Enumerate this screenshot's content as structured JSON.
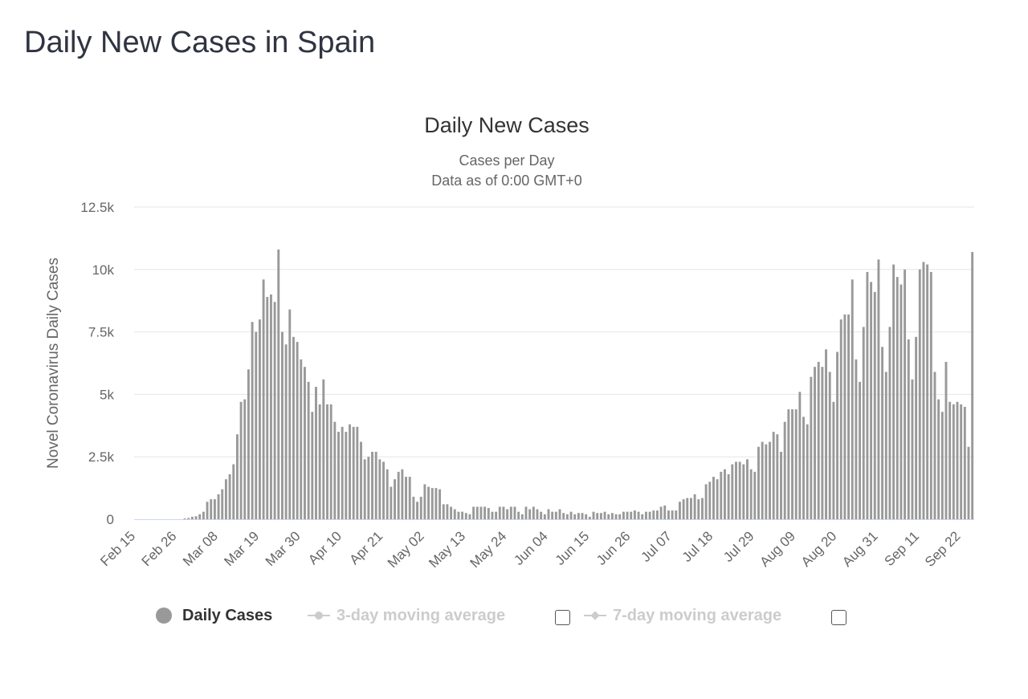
{
  "page": {
    "heading": "Daily New Cases in Spain"
  },
  "chart_data": {
    "type": "bar",
    "title": "Daily New Cases",
    "subtitle_lines": [
      "Cases per Day",
      "Data as of 0:00 GMT+0"
    ],
    "ylabel": "Novel Coronavirus Daily Cases",
    "xlabel": "",
    "ylim": [
      0,
      12500
    ],
    "yticks": [
      {
        "value": 0,
        "label": "0"
      },
      {
        "value": 2500,
        "label": "2.5k"
      },
      {
        "value": 5000,
        "label": "5k"
      },
      {
        "value": 7500,
        "label": "7.5k"
      },
      {
        "value": 10000,
        "label": "10k"
      },
      {
        "value": 12500,
        "label": "12.5k"
      }
    ],
    "xtick_labels": [
      "Feb 15",
      "Feb 26",
      "Mar 08",
      "Mar 19",
      "Mar 30",
      "Apr 10",
      "Apr 21",
      "May 02",
      "May 13",
      "May 24",
      "Jun 04",
      "Jun 15",
      "Jun 26",
      "Jul 07",
      "Jul 18",
      "Jul 29",
      "Aug 09",
      "Aug 20",
      "Aug 31",
      "Sep 11",
      "Sep 22"
    ],
    "grid": true,
    "bar_color": "#999999",
    "series": [
      {
        "name": "Daily Cases",
        "values": [
          0,
          0,
          0,
          0,
          0,
          0,
          0,
          0,
          0,
          0,
          0,
          0,
          0,
          30,
          50,
          100,
          120,
          200,
          300,
          700,
          800,
          800,
          1000,
          1200,
          1600,
          1800,
          2200,
          3400,
          4700,
          4800,
          6000,
          7900,
          7500,
          8000,
          9600,
          8900,
          9000,
          8700,
          10800,
          7500,
          7000,
          8400,
          7300,
          7100,
          6400,
          6100,
          5500,
          4300,
          5300,
          4600,
          5600,
          4600,
          4600,
          3900,
          3500,
          3700,
          3500,
          3800,
          3700,
          3700,
          3100,
          2400,
          2500,
          2700,
          2700,
          2400,
          2300,
          2000,
          1300,
          1600,
          1900,
          2000,
          1700,
          1700,
          900,
          700,
          900,
          1400,
          1300,
          1250,
          1250,
          1200,
          600,
          600,
          500,
          400,
          300,
          300,
          250,
          200,
          500,
          500,
          500,
          500,
          450,
          300,
          300,
          500,
          500,
          400,
          500,
          500,
          300,
          200,
          500,
          400,
          500,
          400,
          300,
          200,
          400,
          300,
          300,
          400,
          250,
          200,
          300,
          200,
          250,
          250,
          200,
          100,
          300,
          250,
          250,
          300,
          200,
          250,
          200,
          200,
          300,
          300,
          300,
          350,
          300,
          200,
          300,
          300,
          350,
          350,
          500,
          550,
          350,
          350,
          350,
          700,
          800,
          850,
          850,
          1000,
          800,
          850,
          1400,
          1500,
          1700,
          1600,
          1900,
          2000,
          1800,
          2200,
          2300,
          2300,
          2200,
          2400,
          2000,
          1900,
          2900,
          3100,
          3000,
          3100,
          3500,
          3400,
          2700,
          3900,
          4400,
          4400,
          4400,
          5100,
          4100,
          3800,
          5700,
          6100,
          6300,
          6100,
          6800,
          5900,
          4700,
          6700,
          8000,
          8200,
          8200,
          9600,
          6400,
          5500,
          7700,
          9900,
          9500,
          9100,
          10400,
          6900,
          5900,
          7700,
          10200,
          9700,
          9400,
          10000,
          7200,
          5600,
          7300,
          10000,
          10300,
          10200,
          9900,
          5900,
          4800,
          4300,
          6300,
          4700,
          4600,
          4700,
          4600,
          4500,
          2900,
          10700
        ]
      }
    ],
    "legend": {
      "position": "bottom",
      "items": [
        {
          "label": "Daily Cases",
          "active": true,
          "color": "#999999"
        },
        {
          "label": "3-day moving average",
          "active": false,
          "color": "#cccccc"
        },
        {
          "label": "7-day moving average",
          "active": false,
          "color": "#cccccc"
        }
      ]
    }
  }
}
